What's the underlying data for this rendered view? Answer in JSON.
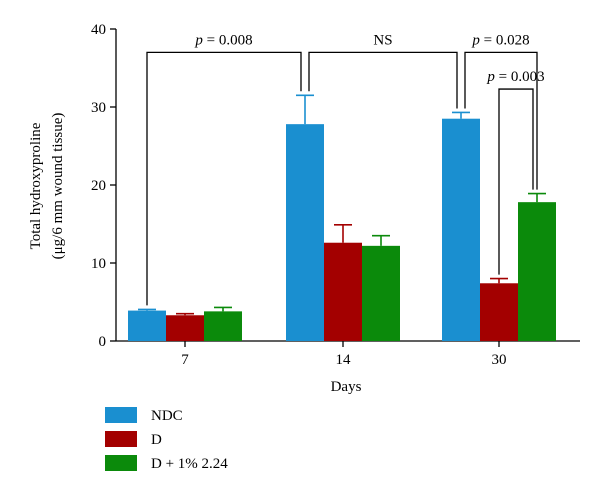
{
  "chart_data": {
    "type": "bar",
    "title": "",
    "xlabel": "Days",
    "ylabel_lines": [
      "Total hydroxyproline",
      "(μg/6 mm wound tissue)"
    ],
    "categories": [
      "7",
      "14",
      "30"
    ],
    "ylim": [
      0,
      40
    ],
    "yticks": [
      0,
      10,
      20,
      30,
      40
    ],
    "grid": false,
    "legend_position": "bottom-left",
    "series": [
      {
        "name": "NDC",
        "color": "#1a8fd0",
        "values": [
          3.9,
          27.8,
          28.5
        ],
        "errors": [
          0.15,
          3.7,
          0.8
        ]
      },
      {
        "name": "D",
        "color": "#a30000",
        "values": [
          3.3,
          12.6,
          7.4
        ],
        "errors": [
          0.2,
          2.3,
          0.6
        ]
      },
      {
        "name": "D + 1% 2.24",
        "color": "#0b8a0b",
        "values": [
          3.8,
          12.2,
          17.8
        ],
        "errors": [
          0.5,
          1.3,
          1.1
        ]
      }
    ],
    "annotations": [
      {
        "p": "p",
        "text": " = 0.008",
        "from": [
          0,
          0
        ],
        "to": [
          1,
          0
        ],
        "level": 37
      },
      {
        "p": "",
        "text": "NS",
        "from": [
          1,
          0
        ],
        "to": [
          2,
          0
        ],
        "level": 37
      },
      {
        "p": "p",
        "text": " = 0.028",
        "from": [
          2,
          0
        ],
        "to": [
          2,
          2
        ],
        "level": 37
      },
      {
        "p": "p",
        "text": " = 0.003",
        "from": [
          2,
          1
        ],
        "to": [
          2,
          2
        ],
        "level": 32.3
      }
    ]
  }
}
